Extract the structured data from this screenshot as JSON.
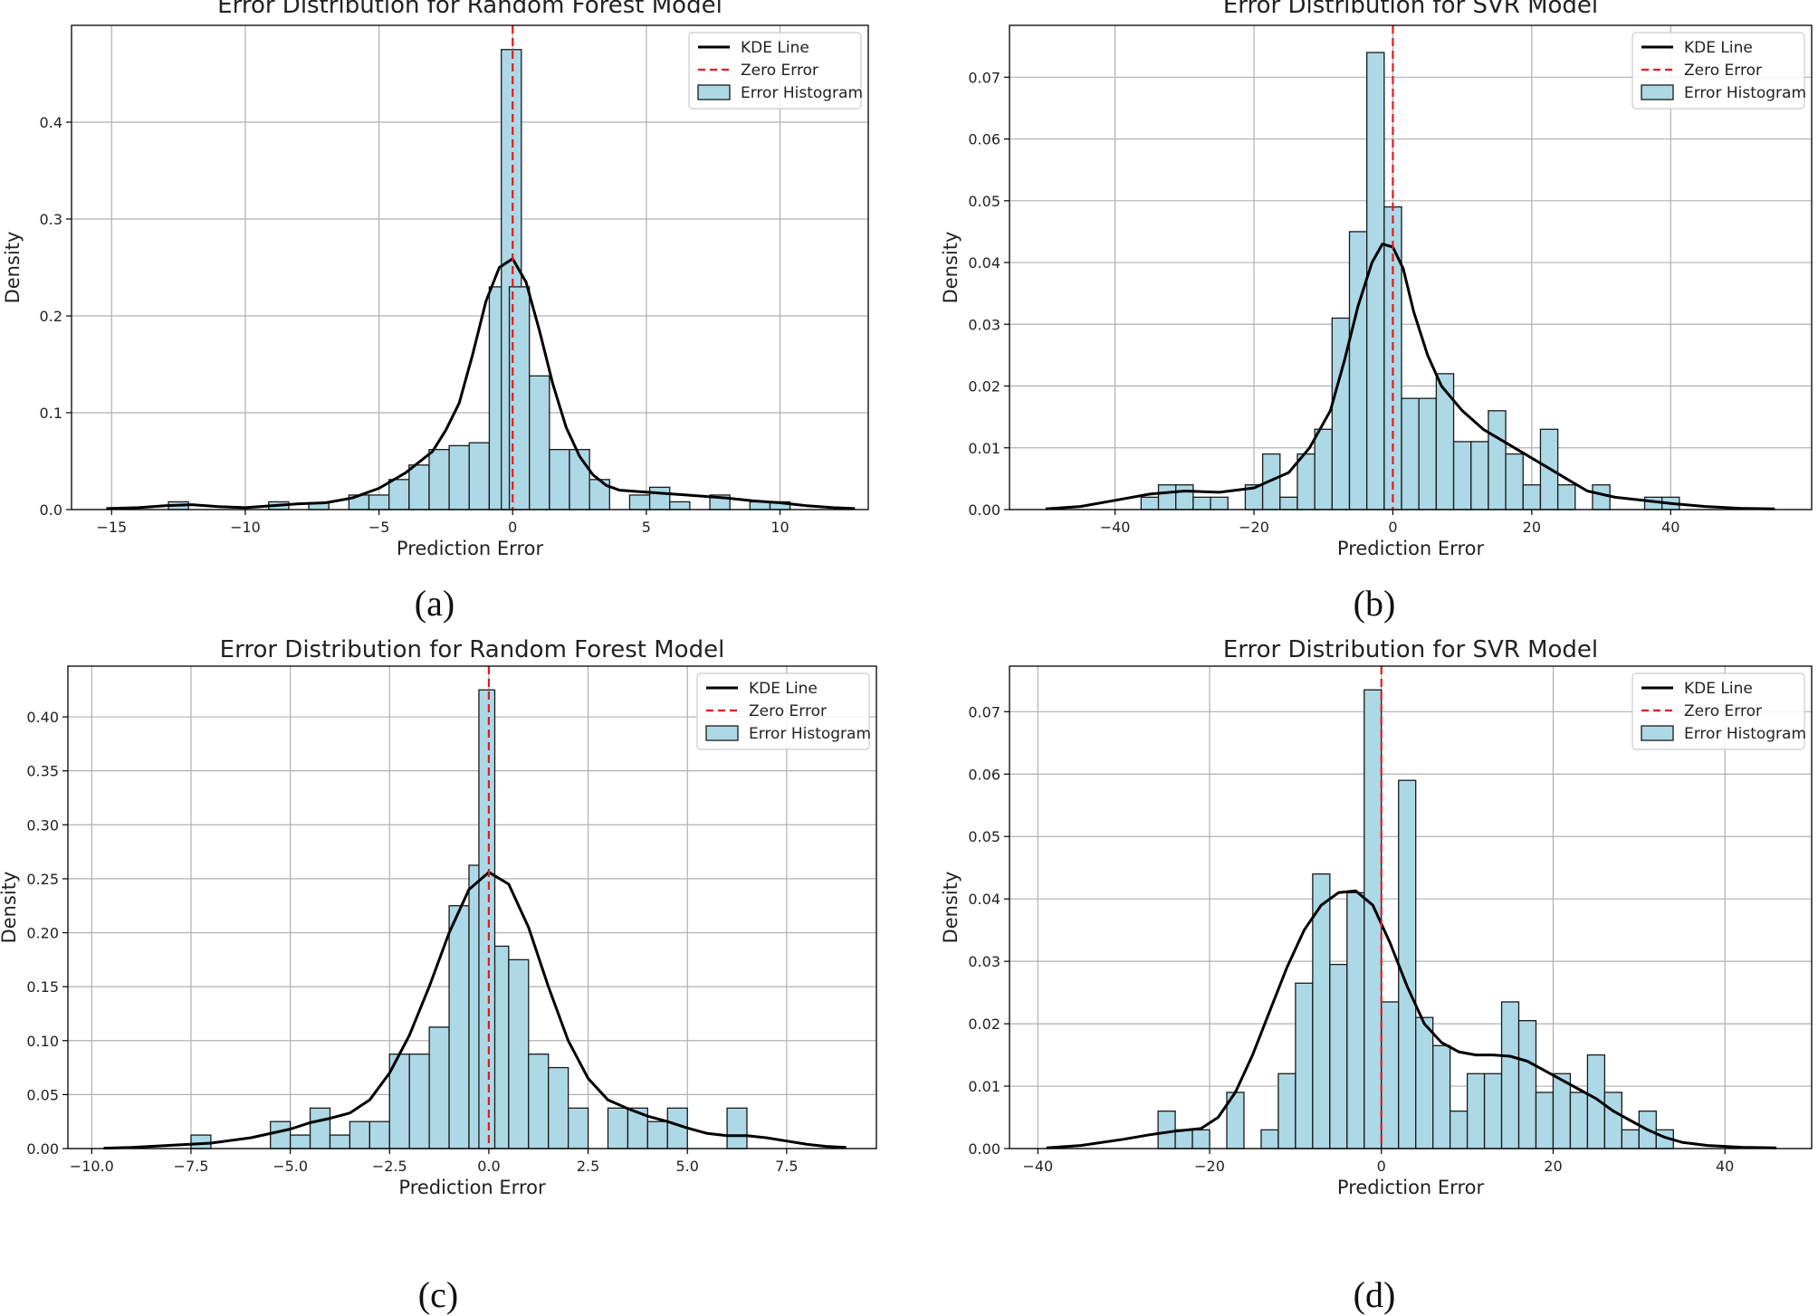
{
  "chart_data": [
    {
      "type": "bar",
      "caption": "(a)",
      "title": "Error Distribution for Random Forest Model",
      "xlabel": "Prediction Error",
      "ylabel": "Density",
      "xlim": [
        -16.5,
        13.3
      ],
      "ylim": [
        0,
        0.5
      ],
      "xticks": [
        -15,
        -10,
        -5,
        0,
        5,
        10
      ],
      "xtick_labels": [
        "−15",
        "−10",
        "−5",
        "0",
        "5",
        "10"
      ],
      "yticks": [
        0,
        0.1,
        0.2,
        0.3,
        0.4
      ],
      "ytick_labels": [
        "0.0",
        "0.1",
        "0.2",
        "0.3",
        "0.4"
      ],
      "grid": true,
      "legend": {
        "placement": "top-right",
        "entries": [
          "KDE Line",
          "Zero Error",
          "Error Histogram"
        ]
      },
      "zero_line": 0,
      "bin_width": 0.75,
      "bins": [
        [
          -12.5,
          0.008
        ],
        [
          -8.75,
          0.008
        ],
        [
          -7.25,
          0.007
        ],
        [
          -5.75,
          0.015
        ],
        [
          -5.0,
          0.015
        ],
        [
          -4.25,
          0.031
        ],
        [
          -3.5,
          0.046
        ],
        [
          -2.75,
          0.062
        ],
        [
          -2.0,
          0.066
        ],
        [
          -1.25,
          0.069
        ],
        [
          -0.5,
          0.23
        ],
        [
          -0.05,
          0.475
        ],
        [
          0.25,
          0.23
        ],
        [
          1.0,
          0.138
        ],
        [
          1.75,
          0.062
        ],
        [
          2.5,
          0.062
        ],
        [
          3.25,
          0.031
        ],
        [
          4.75,
          0.015
        ],
        [
          5.5,
          0.023
        ],
        [
          6.25,
          0.008
        ],
        [
          7.75,
          0.015
        ],
        [
          9.25,
          0.008
        ],
        [
          10.0,
          0.008
        ]
      ],
      "kde": [
        [
          -15.2,
          0.001
        ],
        [
          -14,
          0.002
        ],
        [
          -13,
          0.004
        ],
        [
          -12,
          0.005
        ],
        [
          -11,
          0.003
        ],
        [
          -10,
          0.002
        ],
        [
          -9,
          0.004
        ],
        [
          -8,
          0.006
        ],
        [
          -7,
          0.007
        ],
        [
          -6,
          0.012
        ],
        [
          -5,
          0.022
        ],
        [
          -4,
          0.038
        ],
        [
          -3,
          0.06
        ],
        [
          -2.5,
          0.082
        ],
        [
          -2,
          0.11
        ],
        [
          -1.5,
          0.16
        ],
        [
          -1,
          0.215
        ],
        [
          -0.5,
          0.25
        ],
        [
          0,
          0.259
        ],
        [
          0.5,
          0.235
        ],
        [
          1,
          0.185
        ],
        [
          1.5,
          0.13
        ],
        [
          2,
          0.085
        ],
        [
          2.5,
          0.055
        ],
        [
          3,
          0.036
        ],
        [
          3.5,
          0.025
        ],
        [
          4,
          0.02
        ],
        [
          5,
          0.018
        ],
        [
          6,
          0.016
        ],
        [
          7,
          0.014
        ],
        [
          8,
          0.012
        ],
        [
          9,
          0.009
        ],
        [
          10,
          0.007
        ],
        [
          11,
          0.004
        ],
        [
          12,
          0.002
        ],
        [
          12.8,
          0.001
        ]
      ]
    },
    {
      "type": "bar",
      "caption": "(b)",
      "title": "Error Distribution for SVR Model",
      "xlabel": "Prediction Error",
      "ylabel": "Density",
      "xlim": [
        -55.2,
        60.3
      ],
      "ylim": [
        0,
        0.0784
      ],
      "xticks": [
        -40,
        -20,
        0,
        20,
        40
      ],
      "xtick_labels": [
        "−40",
        "−20",
        "0",
        "20",
        "40"
      ],
      "yticks": [
        0,
        0.01,
        0.02,
        0.03,
        0.04,
        0.05,
        0.06,
        0.07
      ],
      "ytick_labels": [
        "0.00",
        "0.01",
        "0.02",
        "0.03",
        "0.04",
        "0.05",
        "0.06",
        "0.07"
      ],
      "grid": true,
      "legend": {
        "placement": "top-right",
        "entries": [
          "KDE Line",
          "Zero Error",
          "Error Histogram"
        ]
      },
      "zero_line": 0,
      "bin_width": 2.5,
      "bins": [
        [
          -35,
          0.002
        ],
        [
          -32.5,
          0.004
        ],
        [
          -30,
          0.004
        ],
        [
          -27.5,
          0.002
        ],
        [
          -25,
          0.002
        ],
        [
          -20,
          0.004
        ],
        [
          -17.5,
          0.009
        ],
        [
          -15,
          0.002
        ],
        [
          -12.5,
          0.009
        ],
        [
          -10,
          0.013
        ],
        [
          -7.5,
          0.031
        ],
        [
          -5,
          0.045
        ],
        [
          -2.5,
          0.074
        ],
        [
          0,
          0.049
        ],
        [
          2.5,
          0.018
        ],
        [
          5,
          0.018
        ],
        [
          7.5,
          0.022
        ],
        [
          10,
          0.011
        ],
        [
          12.5,
          0.011
        ],
        [
          15,
          0.016
        ],
        [
          17.5,
          0.009
        ],
        [
          20,
          0.004
        ],
        [
          22.5,
          0.013
        ],
        [
          25,
          0.004
        ],
        [
          30,
          0.004
        ],
        [
          37.5,
          0.002
        ],
        [
          40,
          0.002
        ]
      ],
      "kde": [
        [
          -50,
          0.0001
        ],
        [
          -45,
          0.0005
        ],
        [
          -40,
          0.0015
        ],
        [
          -35,
          0.0025
        ],
        [
          -30,
          0.003
        ],
        [
          -25,
          0.0028
        ],
        [
          -20,
          0.0035
        ],
        [
          -15,
          0.006
        ],
        [
          -12,
          0.01
        ],
        [
          -9,
          0.016
        ],
        [
          -7,
          0.024
        ],
        [
          -5,
          0.033
        ],
        [
          -3,
          0.04
        ],
        [
          -1.5,
          0.043
        ],
        [
          0,
          0.0425
        ],
        [
          1.5,
          0.039
        ],
        [
          3,
          0.032
        ],
        [
          5,
          0.025
        ],
        [
          7,
          0.02
        ],
        [
          10,
          0.016
        ],
        [
          13,
          0.013
        ],
        [
          16,
          0.011
        ],
        [
          19,
          0.009
        ],
        [
          22,
          0.007
        ],
        [
          25,
          0.005
        ],
        [
          28,
          0.003
        ],
        [
          32,
          0.002
        ],
        [
          36,
          0.0015
        ],
        [
          40,
          0.001
        ],
        [
          45,
          0.0005
        ],
        [
          50,
          0.0002
        ],
        [
          55,
          0.0001
        ]
      ]
    },
    {
      "type": "bar",
      "caption": "(c)",
      "title": "Error Distribution for Random Forest Model",
      "xlabel": "Prediction Error",
      "ylabel": "Density",
      "xlim": [
        -10.6,
        9.76
      ],
      "ylim": [
        0,
        0.447
      ],
      "xticks": [
        -10,
        -7.5,
        -5,
        -2.5,
        0,
        2.5,
        5,
        7.5
      ],
      "xtick_labels": [
        "−10.0",
        "−7.5",
        "−5.0",
        "−2.5",
        "0.0",
        "2.5",
        "5.0",
        "7.5"
      ],
      "yticks": [
        0,
        0.05,
        0.1,
        0.15,
        0.2,
        0.25,
        0.3,
        0.35,
        0.4
      ],
      "ytick_labels": [
        "0.00",
        "0.05",
        "0.10",
        "0.15",
        "0.20",
        "0.25",
        "0.30",
        "0.35",
        "0.40"
      ],
      "grid": true,
      "legend": {
        "placement": "top-right",
        "entries": [
          "KDE Line",
          "Zero Error",
          "Error Histogram"
        ]
      },
      "zero_line": 0,
      "bin_width": 0.5,
      "bins": [
        [
          -7.25,
          0.0125
        ],
        [
          -5.25,
          0.025
        ],
        [
          -4.75,
          0.0125
        ],
        [
          -4.25,
          0.0375
        ],
        [
          -3.75,
          0.0125
        ],
        [
          -3.25,
          0.025
        ],
        [
          -2.75,
          0.025
        ],
        [
          -2.25,
          0.0875
        ],
        [
          -1.75,
          0.0875
        ],
        [
          -1.25,
          0.1125
        ],
        [
          -0.75,
          0.225
        ],
        [
          -0.25,
          0.2625
        ],
        [
          0.25,
          0.1875
        ],
        [
          0.75,
          0.175
        ],
        [
          1.25,
          0.0875
        ],
        [
          1.75,
          0.075
        ],
        [
          2.25,
          0.0375
        ],
        [
          3.25,
          0.0375
        ],
        [
          3.75,
          0.0375
        ],
        [
          4.25,
          0.025
        ],
        [
          4.75,
          0.0375
        ],
        [
          6.25,
          0.0375
        ]
      ],
      "extra_bins": [
        [
          -0.05,
          0.425,
          0.4
        ]
      ],
      "kde": [
        [
          -9.7,
          0.0003
        ],
        [
          -9,
          0.001
        ],
        [
          -8,
          0.003
        ],
        [
          -7,
          0.005
        ],
        [
          -6,
          0.01
        ],
        [
          -5,
          0.018
        ],
        [
          -4.5,
          0.024
        ],
        [
          -4,
          0.028
        ],
        [
          -3.5,
          0.033
        ],
        [
          -3,
          0.045
        ],
        [
          -2.5,
          0.07
        ],
        [
          -2,
          0.105
        ],
        [
          -1.5,
          0.15
        ],
        [
          -1,
          0.2
        ],
        [
          -0.5,
          0.24
        ],
        [
          0,
          0.256
        ],
        [
          0.5,
          0.245
        ],
        [
          1,
          0.205
        ],
        [
          1.5,
          0.15
        ],
        [
          2,
          0.1
        ],
        [
          2.5,
          0.065
        ],
        [
          3,
          0.045
        ],
        [
          3.5,
          0.037
        ],
        [
          4,
          0.03
        ],
        [
          4.5,
          0.025
        ],
        [
          5,
          0.019
        ],
        [
          5.5,
          0.014
        ],
        [
          6,
          0.012
        ],
        [
          6.5,
          0.012
        ],
        [
          7,
          0.01
        ],
        [
          7.5,
          0.007
        ],
        [
          8,
          0.004
        ],
        [
          8.5,
          0.002
        ],
        [
          9,
          0.001
        ]
      ]
    },
    {
      "type": "bar",
      "caption": "(d)",
      "title": "Error Distribution for SVR Model",
      "xlabel": "Prediction Error",
      "ylabel": "Density",
      "xlim": [
        -43.3,
        50.1
      ],
      "ylim": [
        0,
        0.0773
      ],
      "xticks": [
        -40,
        -20,
        0,
        20,
        40
      ],
      "xtick_labels": [
        "−40",
        "−20",
        "0",
        "20",
        "40"
      ],
      "yticks": [
        0,
        0.01,
        0.02,
        0.03,
        0.04,
        0.05,
        0.06,
        0.07
      ],
      "ytick_labels": [
        "0.00",
        "0.01",
        "0.02",
        "0.03",
        "0.04",
        "0.05",
        "0.06",
        "0.07"
      ],
      "grid": true,
      "legend": {
        "placement": "top-right",
        "entries": [
          "KDE Line",
          "Zero Error",
          "Error Histogram"
        ]
      },
      "zero_line": 0,
      "bin_width": 2,
      "bins": [
        [
          -25,
          0.006
        ],
        [
          -23,
          0.003
        ],
        [
          -21,
          0.003
        ],
        [
          -17,
          0.009
        ],
        [
          -13,
          0.003
        ],
        [
          -11,
          0.012
        ],
        [
          -9,
          0.0265
        ],
        [
          -7,
          0.044
        ],
        [
          -5,
          0.0295
        ],
        [
          -3,
          0.041
        ],
        [
          -1,
          0.0735
        ],
        [
          1,
          0.0235
        ],
        [
          3,
          0.059
        ],
        [
          5,
          0.021
        ],
        [
          7,
          0.0165
        ],
        [
          9,
          0.006
        ],
        [
          11,
          0.012
        ],
        [
          13,
          0.012
        ],
        [
          15,
          0.0235
        ],
        [
          17,
          0.0205
        ],
        [
          19,
          0.009
        ],
        [
          21,
          0.012
        ],
        [
          23,
          0.009
        ],
        [
          25,
          0.015
        ],
        [
          27,
          0.009
        ],
        [
          29,
          0.003
        ],
        [
          31,
          0.006
        ],
        [
          33,
          0.003
        ]
      ],
      "kde": [
        [
          -39,
          0.0001
        ],
        [
          -35,
          0.0005
        ],
        [
          -30,
          0.0015
        ],
        [
          -27,
          0.0022
        ],
        [
          -24,
          0.0028
        ],
        [
          -21,
          0.0032
        ],
        [
          -19,
          0.005
        ],
        [
          -17,
          0.009
        ],
        [
          -15,
          0.015
        ],
        [
          -13,
          0.022
        ],
        [
          -11,
          0.029
        ],
        [
          -9,
          0.035
        ],
        [
          -7,
          0.039
        ],
        [
          -5,
          0.041
        ],
        [
          -3,
          0.0413
        ],
        [
          -1,
          0.039
        ],
        [
          1,
          0.033
        ],
        [
          3,
          0.026
        ],
        [
          5,
          0.02
        ],
        [
          7,
          0.017
        ],
        [
          9,
          0.0155
        ],
        [
          11,
          0.015
        ],
        [
          13,
          0.015
        ],
        [
          15,
          0.0148
        ],
        [
          17,
          0.014
        ],
        [
          19,
          0.0125
        ],
        [
          21,
          0.011
        ],
        [
          23,
          0.0095
        ],
        [
          25,
          0.008
        ],
        [
          27,
          0.006
        ],
        [
          29,
          0.0045
        ],
        [
          31,
          0.003
        ],
        [
          33,
          0.0018
        ],
        [
          35,
          0.001
        ],
        [
          38,
          0.0005
        ],
        [
          42,
          0.0002
        ],
        [
          46,
          0.0001
        ]
      ]
    }
  ],
  "colors": {
    "bar_fill": "#add8e6",
    "bar_edge": "#1a1a1a",
    "kde_line": "#000000",
    "zero_line": "#e41a1c",
    "grid": "#b0b0b0"
  }
}
